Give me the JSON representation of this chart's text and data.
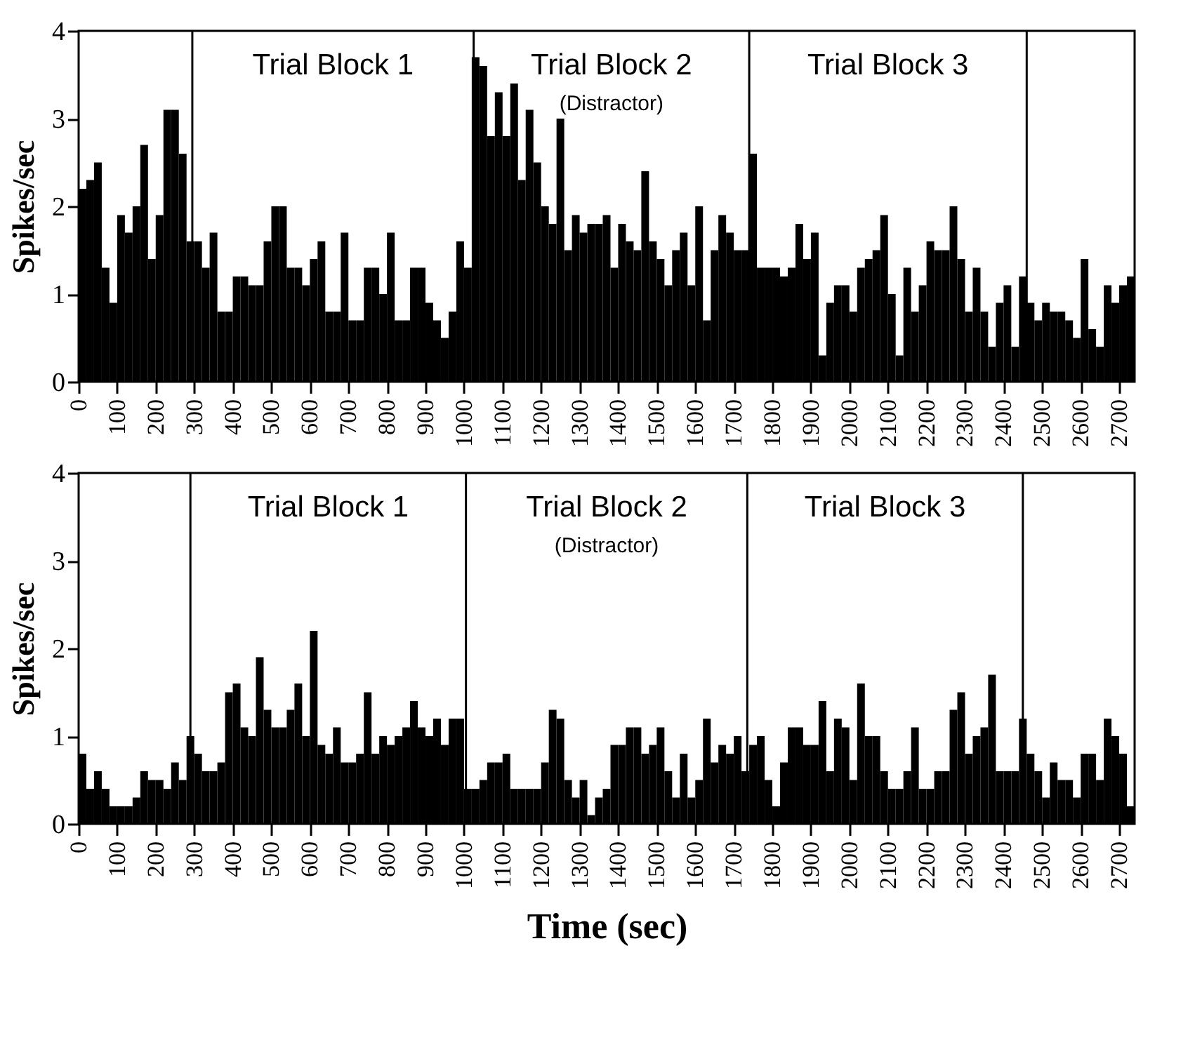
{
  "chart_data": [
    {
      "type": "histogram",
      "ylabel": "Spikes/sec",
      "color": "#000000",
      "bins": [
        0,
        20,
        40,
        60,
        80,
        100,
        120,
        140,
        160,
        180,
        200,
        220,
        240,
        260,
        280,
        300,
        320,
        340,
        360,
        380,
        400,
        420,
        440,
        460,
        480,
        500,
        520,
        540,
        560,
        580,
        600,
        620,
        640,
        660,
        680,
        700,
        720,
        740,
        760,
        780,
        800,
        820,
        840,
        860,
        880,
        900,
        920,
        940,
        960,
        980,
        1000,
        1020,
        1040,
        1060,
        1080,
        1100,
        1120,
        1140,
        1160,
        1180,
        1200,
        1220,
        1240,
        1260,
        1280,
        1300,
        1320,
        1340,
        1360,
        1380,
        1400,
        1420,
        1440,
        1460,
        1480,
        1500,
        1520,
        1540,
        1560,
        1580,
        1600,
        1620,
        1640,
        1660,
        1680,
        1700,
        1720,
        1740,
        1760,
        1780,
        1800,
        1820,
        1840,
        1860,
        1880,
        1900,
        1920,
        1940,
        1960,
        1980,
        2000,
        2020,
        2040,
        2060,
        2080,
        2100,
        2120,
        2140,
        2160,
        2180,
        2200,
        2220,
        2240,
        2260,
        2280,
        2300,
        2320,
        2340,
        2360,
        2380,
        2400,
        2420,
        2440,
        2460,
        2480,
        2500,
        2520,
        2540,
        2560,
        2580,
        2600,
        2620,
        2640,
        2660,
        2680,
        2700,
        2720,
        2740
      ],
      "values": [
        2.2,
        2.3,
        2.5,
        1.3,
        0.9,
        1.9,
        1.7,
        2.0,
        2.7,
        1.4,
        1.9,
        3.1,
        3.1,
        2.6,
        1.6,
        1.6,
        1.3,
        1.7,
        0.8,
        0.8,
        1.2,
        1.2,
        1.1,
        1.1,
        1.6,
        2.0,
        2.0,
        1.3,
        1.3,
        1.1,
        1.4,
        1.6,
        0.8,
        0.8,
        1.7,
        0.7,
        0.7,
        1.3,
        1.3,
        1.0,
        1.7,
        0.7,
        0.7,
        1.3,
        1.3,
        0.9,
        0.7,
        0.5,
        0.8,
        1.6,
        1.3,
        3.7,
        3.6,
        2.8,
        3.3,
        2.8,
        3.4,
        2.3,
        3.1,
        2.5,
        2.0,
        1.8,
        3.0,
        1.5,
        1.9,
        1.7,
        1.8,
        1.8,
        1.9,
        1.3,
        1.8,
        1.6,
        1.5,
        2.4,
        1.6,
        1.4,
        1.1,
        1.5,
        1.7,
        1.1,
        2.0,
        0.7,
        1.5,
        1.9,
        1.7,
        1.5,
        1.5,
        2.6,
        1.3,
        1.3,
        1.3,
        1.2,
        1.3,
        1.8,
        1.4,
        1.7,
        0.3,
        0.9,
        1.1,
        1.1,
        0.8,
        1.3,
        1.4,
        1.5,
        1.9,
        1.0,
        0.3,
        1.3,
        0.8,
        1.1,
        1.6,
        1.5,
        1.5,
        2.0,
        1.4,
        0.8,
        1.3,
        0.8,
        0.4,
        0.9,
        1.1,
        0.4,
        1.2,
        0.9,
        0.7,
        0.9,
        0.8,
        0.8,
        0.7,
        0.5,
        1.4,
        0.6,
        0.4,
        1.1,
        0.9,
        1.1,
        1.2
      ],
      "xlim": [
        0,
        2740
      ],
      "ylim": [
        0,
        4
      ],
      "xticks": [
        0,
        100,
        200,
        300,
        400,
        500,
        600,
        700,
        800,
        900,
        1000,
        1100,
        1200,
        1300,
        1400,
        1500,
        1600,
        1700,
        1800,
        1900,
        2000,
        2100,
        2200,
        2300,
        2400,
        2500,
        2600,
        2700
      ],
      "yticks": [
        0,
        1,
        2,
        3,
        4
      ],
      "grid": false,
      "ref_lines": [
        {
          "axis": "x",
          "value": 295
        },
        {
          "axis": "x",
          "value": 1025
        },
        {
          "axis": "x",
          "value": 1740
        },
        {
          "axis": "x",
          "value": 2460
        }
      ],
      "annotations": [
        "Trial Block 1",
        "Trial Block 2\n(Distractor)",
        "Trial Block 3"
      ]
    },
    {
      "type": "histogram",
      "ylabel": "Spikes/sec",
      "xlabel": "Time (sec)",
      "color": "#000000",
      "bins": [
        0,
        20,
        40,
        60,
        80,
        100,
        120,
        140,
        160,
        180,
        200,
        220,
        240,
        260,
        280,
        300,
        320,
        340,
        360,
        380,
        400,
        420,
        440,
        460,
        480,
        500,
        520,
        540,
        560,
        580,
        600,
        620,
        640,
        660,
        680,
        700,
        720,
        740,
        760,
        780,
        800,
        820,
        840,
        860,
        880,
        900,
        920,
        940,
        960,
        980,
        1000,
        1020,
        1040,
        1060,
        1080,
        1100,
        1120,
        1140,
        1160,
        1180,
        1200,
        1220,
        1240,
        1260,
        1280,
        1300,
        1320,
        1340,
        1360,
        1380,
        1400,
        1420,
        1440,
        1460,
        1480,
        1500,
        1520,
        1540,
        1560,
        1580,
        1600,
        1620,
        1640,
        1660,
        1680,
        1700,
        1720,
        1740,
        1760,
        1780,
        1800,
        1820,
        1840,
        1860,
        1880,
        1900,
        1920,
        1940,
        1960,
        1980,
        2000,
        2020,
        2040,
        2060,
        2080,
        2100,
        2120,
        2140,
        2160,
        2180,
        2200,
        2220,
        2240,
        2260,
        2280,
        2300,
        2320,
        2340,
        2360,
        2380,
        2400,
        2420,
        2440,
        2460,
        2480,
        2500,
        2520,
        2540,
        2560,
        2580,
        2600,
        2620,
        2640,
        2660,
        2680,
        2700,
        2720,
        2740
      ],
      "values": [
        0.8,
        0.4,
        0.6,
        0.4,
        0.2,
        0.2,
        0.2,
        0.3,
        0.6,
        0.5,
        0.5,
        0.4,
        0.7,
        0.5,
        1.0,
        0.8,
        0.6,
        0.6,
        0.7,
        1.5,
        1.6,
        1.1,
        1.0,
        1.9,
        1.3,
        1.1,
        1.1,
        1.3,
        1.6,
        1.0,
        2.2,
        0.9,
        0.8,
        1.1,
        0.7,
        0.7,
        0.8,
        1.5,
        0.8,
        1.0,
        0.9,
        1.0,
        1.1,
        1.4,
        1.1,
        1.0,
        1.2,
        0.9,
        1.2,
        1.2,
        0.4,
        0.4,
        0.5,
        0.7,
        0.7,
        0.8,
        0.4,
        0.4,
        0.4,
        0.4,
        0.7,
        1.3,
        1.2,
        0.5,
        0.3,
        0.5,
        0.1,
        0.3,
        0.4,
        0.9,
        0.9,
        1.1,
        1.1,
        0.8,
        0.9,
        1.1,
        0.6,
        0.3,
        0.8,
        0.3,
        0.5,
        1.2,
        0.7,
        0.9,
        0.8,
        1.0,
        0.6,
        0.9,
        1.0,
        0.5,
        0.2,
        0.7,
        1.1,
        1.1,
        0.9,
        0.9,
        1.4,
        0.6,
        1.2,
        1.1,
        0.5,
        1.6,
        1.0,
        1.0,
        0.6,
        0.4,
        0.4,
        0.6,
        1.1,
        0.4,
        0.4,
        0.6,
        0.6,
        1.3,
        1.5,
        0.8,
        1.0,
        1.1,
        1.7,
        0.6,
        0.6,
        0.6,
        1.2,
        0.8,
        0.6,
        0.3,
        0.7,
        0.5,
        0.5,
        0.3,
        0.8,
        0.8,
        0.5,
        1.2,
        1.0,
        0.8,
        0.2
      ],
      "xlim": [
        0,
        2740
      ],
      "ylim": [
        0,
        4
      ],
      "xticks": [
        0,
        100,
        200,
        300,
        400,
        500,
        600,
        700,
        800,
        900,
        1000,
        1100,
        1200,
        1300,
        1400,
        1500,
        1600,
        1700,
        1800,
        1900,
        2000,
        2100,
        2200,
        2300,
        2400,
        2500,
        2600,
        2700
      ],
      "yticks": [
        0,
        1,
        2,
        3,
        4
      ],
      "grid": false,
      "ref_lines": [
        {
          "axis": "x",
          "value": 290
        },
        {
          "axis": "x",
          "value": 1005
        },
        {
          "axis": "x",
          "value": 1735
        },
        {
          "axis": "x",
          "value": 2450
        }
      ],
      "annotations": [
        "Trial Block 1",
        "Trial Block 2\n(Distractor)",
        "Trial Block 3"
      ]
    }
  ]
}
